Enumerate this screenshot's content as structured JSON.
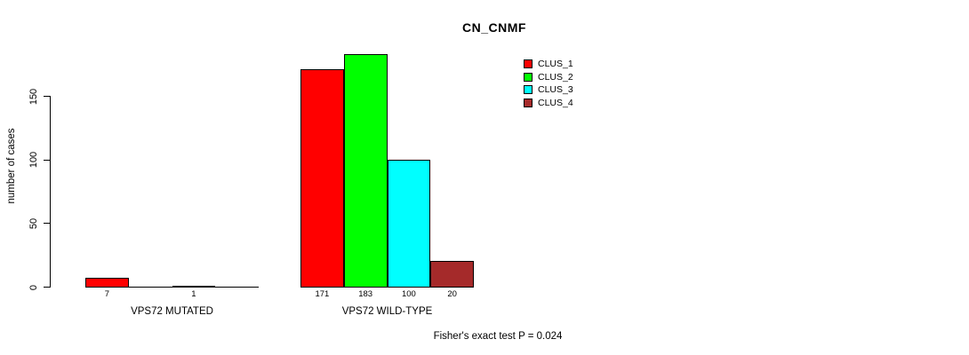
{
  "chart_data": {
    "type": "bar",
    "title": "CN_CNMF",
    "ylabel": "number of cases",
    "xlabel": "",
    "ylim": [
      0,
      190
    ],
    "yticks": [
      0,
      50,
      100,
      150
    ],
    "grid": false,
    "legend_position": "top-right",
    "categories": [
      "VPS72 MUTATED",
      "VPS72 WILD-TYPE"
    ],
    "series": [
      {
        "name": "CLUS_1",
        "color": "#FF0000",
        "values": [
          7,
          171
        ]
      },
      {
        "name": "CLUS_2",
        "color": "#00FF00",
        "values": [
          0,
          183
        ]
      },
      {
        "name": "CLUS_3",
        "color": "#00FFFF",
        "values": [
          1,
          100
        ]
      },
      {
        "name": "CLUS_4",
        "color": "#A52A2A",
        "values": [
          0,
          20
        ]
      }
    ],
    "bar_value_labels": [
      [
        "7",
        "",
        "1",
        ""
      ],
      [
        "171",
        "183",
        "100",
        "20"
      ]
    ],
    "annotation": "Fisher's exact test P = 0.024"
  }
}
